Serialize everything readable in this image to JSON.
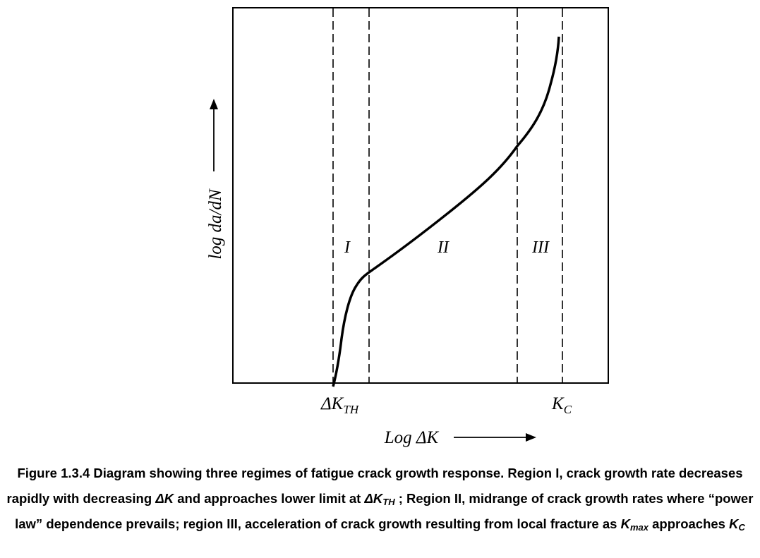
{
  "diagram": {
    "regions": [
      "I",
      "II",
      "III"
    ],
    "y_axis_label": "log da/dN",
    "x_axis_label": "Log ΔK",
    "markers": [
      {
        "main": "ΔK",
        "sub": "TH"
      },
      {
        "main": "K",
        "sub": "C"
      }
    ]
  },
  "caption": {
    "runs": [
      "Figure 1.3.4 Diagram showing three regimes of fatigue crack growth response. Region I, crack growth rate decreases rapidly with decreasing ",
      "ΔK",
      " and approaches lower limit at ",
      "ΔK",
      "TH",
      " ; Region II, midrange of crack growth rates where “power law” dependence prevails; region III, acceleration of crack growth resulting from local fracture as ",
      "K",
      "max",
      " approaches ",
      "K",
      "C"
    ]
  }
}
